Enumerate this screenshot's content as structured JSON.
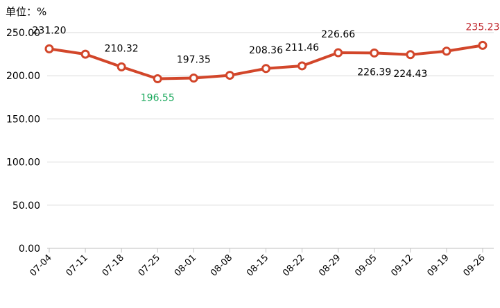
{
  "unit_label": "单位：%",
  "colors": {
    "line": "#d2462a",
    "grid": "#d9d9d9",
    "axis": "#bfbfbf",
    "min_label": "#1aa85c",
    "max_label": "#c0272d",
    "label": "#000000"
  },
  "chart_data": {
    "type": "line",
    "categories": [
      "07-04",
      "07-11",
      "07-18",
      "07-25",
      "08-01",
      "08-08",
      "08-15",
      "08-22",
      "08-29",
      "09-05",
      "09-12",
      "09-19",
      "09-26"
    ],
    "series": [
      {
        "values": [
          231.2,
          225.0,
          210.32,
          196.55,
          197.35,
          200.5,
          208.36,
          211.46,
          226.66,
          226.39,
          224.43,
          228.5,
          235.23
        ]
      }
    ],
    "data_labels": [
      "231.20",
      "",
      "210.32",
      "196.55",
      "197.35",
      "",
      "208.36",
      "211.46",
      "226.66",
      "226.39",
      "224.43",
      "",
      "235.23"
    ],
    "label_position": [
      "above",
      "",
      "above",
      "below",
      "above",
      "",
      "above",
      "above",
      "above",
      "below",
      "below",
      "",
      "above"
    ],
    "highlight": {
      "min_index": 3,
      "max_index": 12
    },
    "yticks": [
      "0.00",
      "50.00",
      "100.00",
      "150.00",
      "200.00",
      "250.00"
    ],
    "ylim": [
      0,
      250
    ],
    "grid": true,
    "legend": "none"
  }
}
